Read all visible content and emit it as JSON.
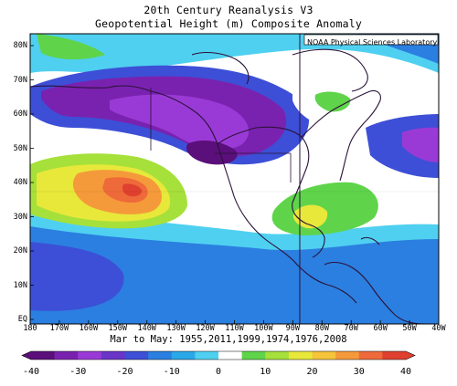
{
  "title_line1": "20th Century Reanalysis V3",
  "title_line2": "Geopotential Height (m) Composite Anomaly",
  "lab_label": "NOAA Physical Sciences Laboratory",
  "subtitle": "Mar to May: 1955,2011,1999,1974,1976,2008",
  "lat_ticks": [
    "80N",
    "70N",
    "60N",
    "50N",
    "40N",
    "30N",
    "20N",
    "10N",
    "EQ"
  ],
  "lon_ticks": [
    "180",
    "170W",
    "160W",
    "150W",
    "140W",
    "130W",
    "120W",
    "110W",
    "100W",
    "90W",
    "80W",
    "70W",
    "60W",
    "50W",
    "40W"
  ],
  "colorbar": {
    "labels": [
      "-40",
      "-30",
      "-20",
      "-10",
      "0",
      "10",
      "20",
      "30",
      "40"
    ],
    "colors": [
      "#5a0f7a",
      "#7a22b0",
      "#9a3ad6",
      "#6a35c8",
      "#3d4fd6",
      "#2b7fe0",
      "#2aa8e8",
      "#4fd0f0",
      "#ffffff",
      "#5fd44a",
      "#a6e03a",
      "#e8e83a",
      "#f5c43a",
      "#f59a3a",
      "#ef6a3a",
      "#e0402f"
    ],
    "range": [
      -40,
      40
    ]
  }
}
